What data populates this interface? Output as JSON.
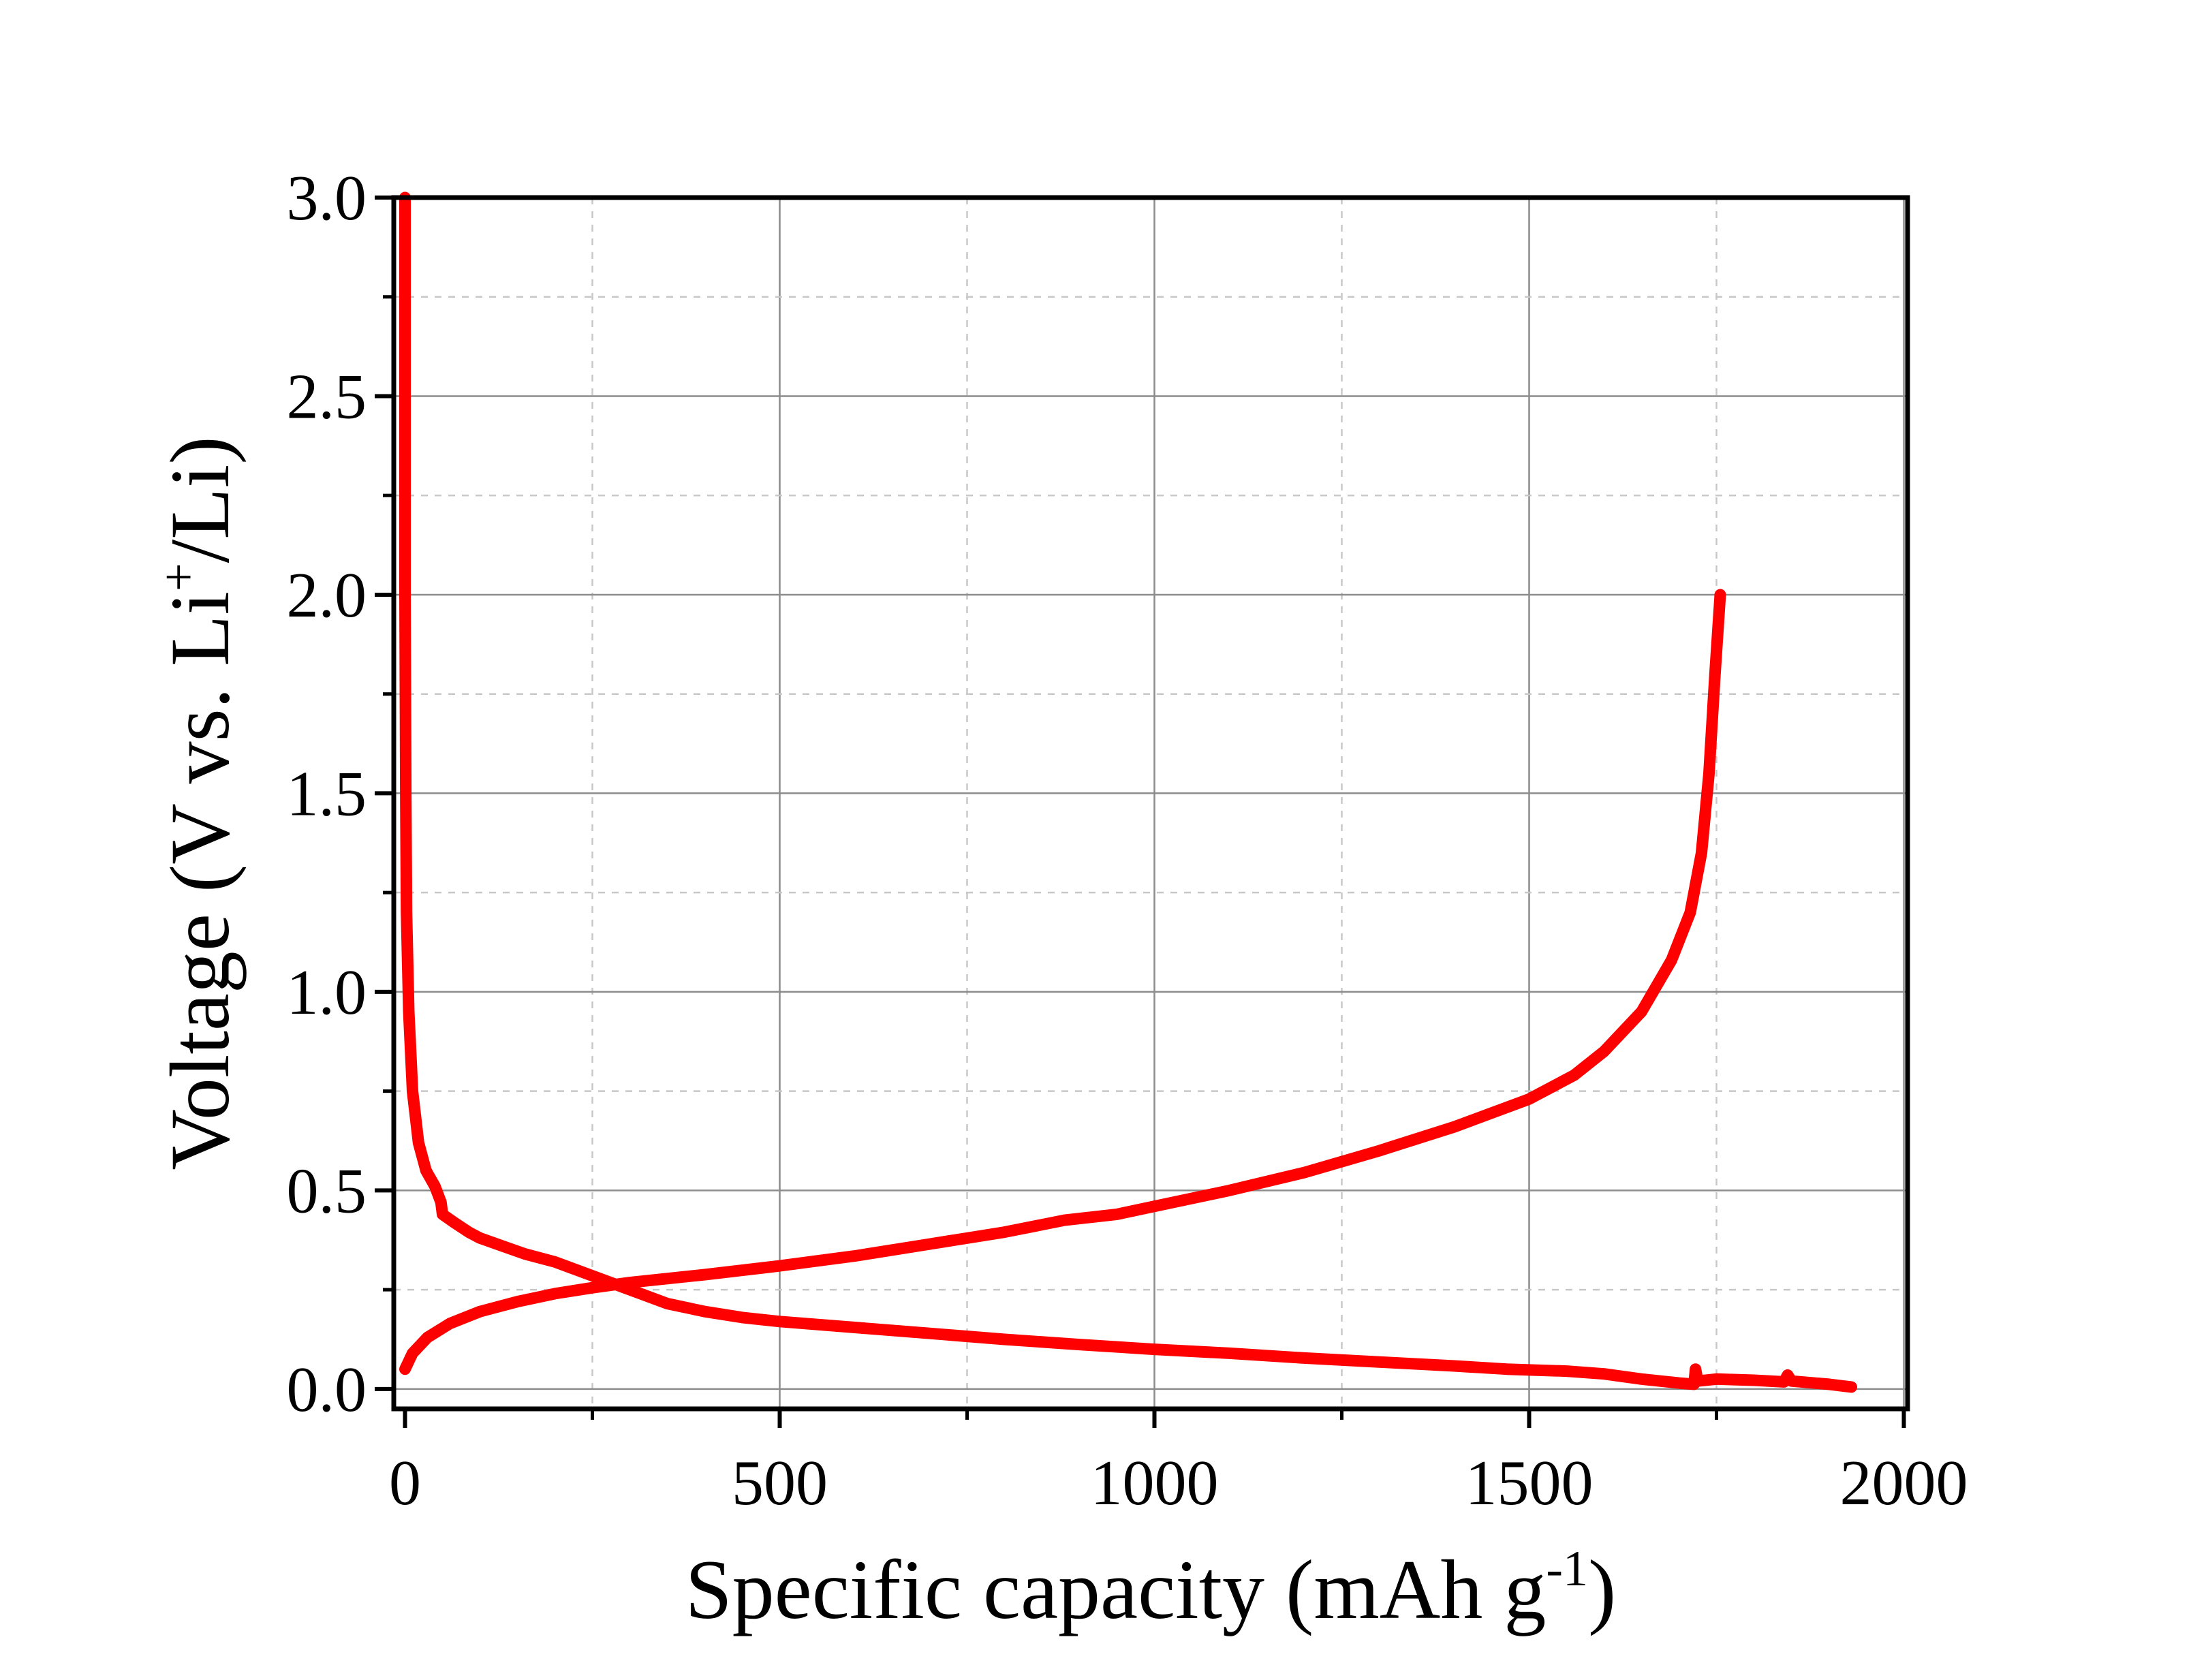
{
  "chart_data": {
    "type": "line",
    "xlabel": {
      "text": "Specific capacity (mAh g",
      "sup": "-1",
      "tail": ")"
    },
    "ylabel": {
      "text": "Voltage (V vs. Li",
      "sup": "+",
      "tail": "/Li)"
    },
    "xlim": [
      -15,
      2005
    ],
    "ylim": [
      -0.05,
      3.0
    ],
    "xticks": [
      0,
      500,
      1000,
      1500,
      2000
    ],
    "yticks": [
      0.0,
      0.5,
      1.0,
      1.5,
      2.0,
      2.5,
      3.0
    ],
    "xtick_labels": [
      "0",
      "500",
      "1000",
      "1500",
      "2000"
    ],
    "ytick_labels": [
      "0.0",
      "0.5",
      "1.0",
      "1.5",
      "2.0",
      "2.5",
      "3.0"
    ],
    "grid": {
      "major": true,
      "minor": true,
      "major_color": "#8c8c8c",
      "minor_color": "#c8c8c8"
    },
    "line_color": "#ff0000",
    "series": [
      {
        "values": [
          [
            0,
            3.0
          ],
          [
            0,
            2.5
          ],
          [
            0,
            2.0
          ],
          [
            1,
            1.5
          ],
          [
            2,
            1.2
          ],
          [
            5,
            0.95
          ],
          [
            10,
            0.75
          ],
          [
            18,
            0.62
          ],
          [
            28,
            0.55
          ],
          [
            40,
            0.51
          ],
          [
            48,
            0.47
          ],
          [
            50,
            0.44
          ],
          [
            65,
            0.42
          ],
          [
            85,
            0.395
          ],
          [
            100,
            0.38
          ],
          [
            130,
            0.36
          ],
          [
            160,
            0.34
          ],
          [
            200,
            0.32
          ],
          [
            250,
            0.285
          ],
          [
            300,
            0.25
          ],
          [
            350,
            0.215
          ],
          [
            400,
            0.195
          ],
          [
            450,
            0.18
          ],
          [
            500,
            0.17
          ],
          [
            600,
            0.155
          ],
          [
            700,
            0.14
          ],
          [
            800,
            0.125
          ],
          [
            900,
            0.112
          ],
          [
            1000,
            0.1
          ],
          [
            1100,
            0.09
          ],
          [
            1200,
            0.078
          ],
          [
            1300,
            0.068
          ],
          [
            1400,
            0.058
          ],
          [
            1470,
            0.05
          ],
          [
            1500,
            0.048
          ],
          [
            1550,
            0.045
          ],
          [
            1600,
            0.038
          ],
          [
            1650,
            0.025
          ],
          [
            1700,
            0.015
          ],
          [
            1720,
            0.012
          ],
          [
            1722,
            0.05
          ],
          [
            1725,
            0.02
          ],
          [
            1750,
            0.025
          ],
          [
            1800,
            0.022
          ],
          [
            1840,
            0.018
          ],
          [
            1845,
            0.035
          ],
          [
            1850,
            0.02
          ],
          [
            1900,
            0.012
          ],
          [
            1930,
            0.005
          ]
        ]
      },
      {
        "values": [
          [
            0,
            0.05
          ],
          [
            10,
            0.09
          ],
          [
            30,
            0.13
          ],
          [
            60,
            0.165
          ],
          [
            100,
            0.195
          ],
          [
            150,
            0.22
          ],
          [
            200,
            0.24
          ],
          [
            250,
            0.255
          ],
          [
            300,
            0.268
          ],
          [
            400,
            0.288
          ],
          [
            500,
            0.31
          ],
          [
            600,
            0.335
          ],
          [
            700,
            0.365
          ],
          [
            800,
            0.395
          ],
          [
            880,
            0.425
          ],
          [
            950,
            0.44
          ],
          [
            1000,
            0.46
          ],
          [
            1100,
            0.5
          ],
          [
            1200,
            0.545
          ],
          [
            1300,
            0.6
          ],
          [
            1400,
            0.66
          ],
          [
            1500,
            0.73
          ],
          [
            1560,
            0.79
          ],
          [
            1600,
            0.85
          ],
          [
            1650,
            0.95
          ],
          [
            1690,
            1.08
          ],
          [
            1715,
            1.2
          ],
          [
            1730,
            1.35
          ],
          [
            1740,
            1.55
          ],
          [
            1748,
            1.8
          ],
          [
            1755,
            2.0
          ]
        ]
      }
    ]
  }
}
